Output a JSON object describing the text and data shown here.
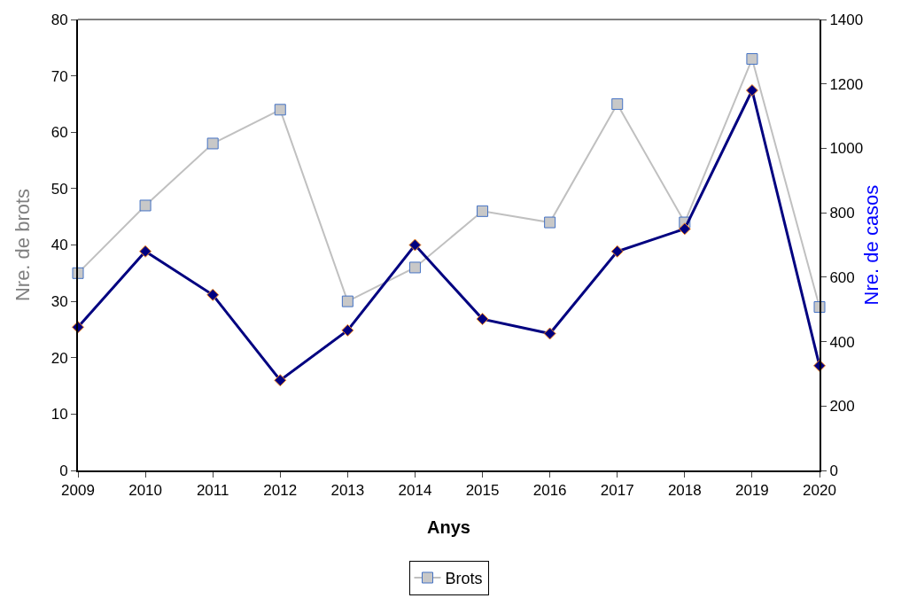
{
  "chart_data": {
    "type": "line",
    "xlabel": "Anys",
    "ylabel": "Nre. de brots",
    "y2label": "Nre. de casos",
    "categories": [
      "2009",
      "2010",
      "2011",
      "2012",
      "2013",
      "2014",
      "2015",
      "2016",
      "2017",
      "2018",
      "2019",
      "2020"
    ],
    "series": [
      {
        "name": "Brots",
        "color": "#c0c0c0",
        "marker": "square",
        "values": [
          35,
          47,
          58,
          64,
          30,
          36,
          46,
          44,
          65,
          44,
          73,
          29
        ]
      },
      {
        "color": "#000080",
        "marker": "diamond",
        "axis": "y2",
        "values": [
          445,
          680,
          545,
          280,
          435,
          700,
          470,
          425,
          680,
          750,
          1180,
          325
        ]
      }
    ],
    "ylim": [
      0,
      80
    ],
    "yticks": [
      0,
      10,
      20,
      30,
      40,
      50,
      60,
      70,
      80
    ],
    "y2lim": [
      0,
      1400
    ],
    "y2ticks": [
      0,
      200,
      400,
      600,
      800,
      1000,
      1200,
      1400
    ],
    "grid": false,
    "legend": "bottom",
    "line_style": "solid"
  }
}
